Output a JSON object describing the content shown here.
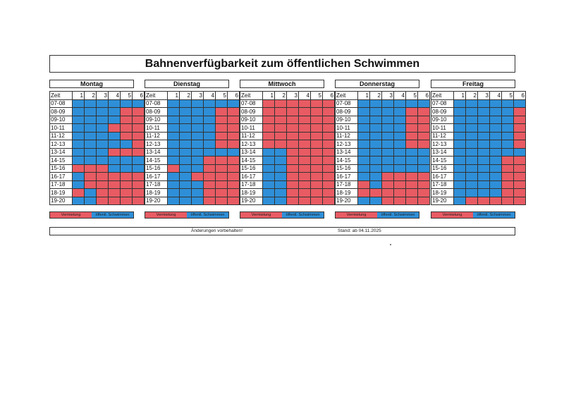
{
  "title": "Bahnenverfügbarkeit zum öffentlichen Schwimmen",
  "header_zeit": "Zeit",
  "lanes": [
    "1",
    "2",
    "3",
    "4",
    "5",
    "6"
  ],
  "times": [
    "07-08",
    "08-09",
    "09-10",
    "10-11",
    "11-12",
    "12-13",
    "13-14",
    "14-15",
    "15-16",
    "16-17",
    "17-18",
    "18-19",
    "19-20"
  ],
  "legend": {
    "rental": "Vermietung",
    "public": "öffentl. Schwimmen"
  },
  "colors": {
    "rental": "#e85b63",
    "public": "#2e8fd8"
  },
  "footer": {
    "note": "Änderungen vorbehalten!",
    "stand": "Stand: ab 04.11.2025"
  },
  "days": [
    {
      "name": "Montag",
      "grid": [
        "bbbbbb",
        "bbbbrr",
        "bbbbrr",
        "bbbrrr",
        "bbbbrr",
        "bbbbbr",
        "bbbrrr",
        "bbbbbb",
        "rrrbbb",
        "brrrrr",
        "brrrrr",
        "rbrrrr",
        "bbrrrr"
      ]
    },
    {
      "name": "Dienstag",
      "grid": [
        "bbbbbb",
        "bbbbrr",
        "bbbbrr",
        "bbbbrr",
        "bbbbrr",
        "bbbbrr",
        "bbbbbb",
        "bbbrrr",
        "rbbrrr",
        "bbrrrr",
        "bbbrrr",
        "bbbrrr",
        "bbbrrr"
      ]
    },
    {
      "name": "Mittwoch",
      "grid": [
        "rrrrrr",
        "rrrrrr",
        "rrrrrr",
        "rrrrrr",
        "rrrrrr",
        "rrrrrr",
        "bbrrrr",
        "bbrrrr",
        "bbrrrr",
        "bbrrrr",
        "bbrrrr",
        "bbrrrr",
        "bbrrrr"
      ]
    },
    {
      "name": "Donnerstag",
      "grid": [
        "bbbbbb",
        "bbbbrr",
        "bbbbrr",
        "bbbbrr",
        "bbbbrr",
        "bbbbrr",
        "bbbbbb",
        "bbbbbb",
        "bbbbbb",
        "bbrrrr",
        "rbrrrr",
        "rrrrrr",
        "bbrrrr"
      ]
    },
    {
      "name": "Freitag",
      "grid": [
        "bbbbbb",
        "bbbbbr",
        "bbbbbr",
        "bbbbbr",
        "bbbbbr",
        "bbbbbr",
        "bbbbbb",
        "bbbbrr",
        "bbbbrr",
        "bbbbrr",
        "bbbbrr",
        "bbbbrr",
        "brrrrr"
      ]
    }
  ]
}
